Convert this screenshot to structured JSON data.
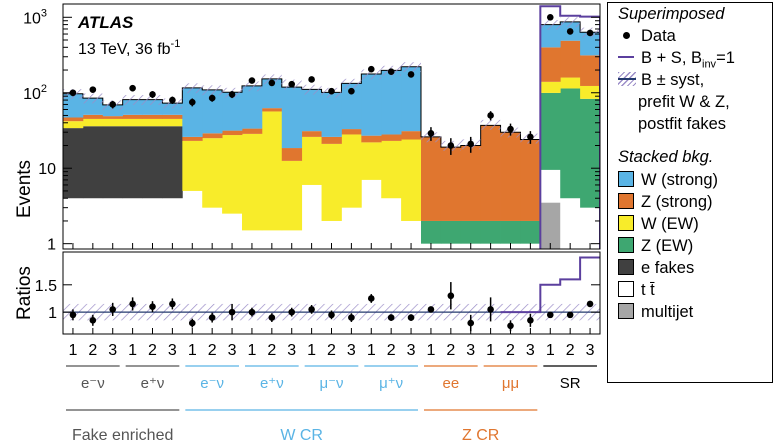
{
  "chart_data": {
    "type": "bar",
    "stacked": true,
    "categories": [
      "1",
      "2",
      "3",
      "1",
      "2",
      "3",
      "1",
      "2",
      "3",
      "1",
      "2",
      "3",
      "1",
      "2",
      "3",
      "1",
      "2",
      "3",
      "1",
      "2",
      "3",
      "1",
      "2",
      "3",
      "1",
      "2",
      "3"
    ],
    "regions": [
      {
        "label": "e⁻ν",
        "color": "#555555"
      },
      {
        "label": "e⁺ν",
        "color": "#555555"
      },
      {
        "label": "e⁻ν",
        "color": "#5ab4e5"
      },
      {
        "label": "e⁺ν",
        "color": "#5ab4e5"
      },
      {
        "label": "μ⁻ν",
        "color": "#5ab4e5"
      },
      {
        "label": "μ⁺ν",
        "color": "#5ab4e5"
      },
      {
        "label": "ee",
        "color": "#e0762f"
      },
      {
        "label": "μμ",
        "color": "#e0762f"
      },
      {
        "label": "SR",
        "color": "#000000"
      }
    ],
    "groups": [
      {
        "label": "Fake enriched",
        "color": "#555555"
      },
      {
        "label": "W CR",
        "color": "#5ab4e5"
      },
      {
        "label": "Z CR",
        "color": "#e0762f"
      }
    ],
    "annotation": {
      "experiment": "ATLAS",
      "energy": "13 TeV, 36 fb",
      "lumi_sup": "-1"
    },
    "ylabel": "Events",
    "ylabel_ratio": "Ratios",
    "yscale": "log",
    "ylim": [
      0.85,
      1500
    ],
    "yticks": [
      {
        "v": 1,
        "label": "1"
      },
      {
        "v": 10,
        "label": "10"
      },
      {
        "v": 100,
        "label": "10",
        "sup": "2"
      },
      {
        "v": 1000,
        "label": "10",
        "sup": "3"
      }
    ],
    "ratio_ylim": [
      0.6,
      2.1
    ],
    "ratio_yticks": [
      {
        "v": 1,
        "label": "1"
      },
      {
        "v": 1.5,
        "label": "1.5"
      }
    ],
    "series": [
      {
        "name": "multijet",
        "color": "#a6a6a6",
        "values": [
          0,
          0,
          0,
          0,
          0,
          0,
          0,
          0,
          0,
          0,
          0,
          0,
          0,
          0,
          0,
          0,
          0,
          0,
          0,
          0,
          0,
          0,
          0,
          0,
          3.5,
          0,
          0
        ]
      },
      {
        "name": "t t̄",
        "color": "#ffffff",
        "values": [
          4,
          4,
          4,
          4,
          4,
          4,
          5,
          3,
          2.5,
          1.5,
          1.5,
          1.5,
          6,
          2,
          3,
          7,
          4,
          2,
          1,
          1,
          1,
          1,
          1,
          1,
          6,
          4,
          3
        ]
      },
      {
        "name": "e fakes",
        "color": "#404040",
        "values": [
          30,
          32,
          32,
          32,
          32,
          32,
          0,
          0,
          0,
          0,
          0,
          0,
          0,
          0,
          0,
          0,
          0,
          0,
          0,
          0,
          0,
          0,
          0,
          0,
          0,
          0,
          0
        ]
      },
      {
        "name": "Z (EW)",
        "color": "#3ea771",
        "values": [
          0,
          0,
          0,
          0,
          0,
          0,
          0,
          0,
          0,
          0,
          0,
          0,
          0,
          0,
          0,
          0,
          0,
          0,
          1,
          1,
          1,
          1,
          1,
          1,
          90,
          110,
          80
        ]
      },
      {
        "name": "W (EW)",
        "color": "#f8ec2a",
        "values": [
          8,
          9,
          9,
          9,
          9,
          9,
          18,
          22,
          25,
          27,
          55,
          11,
          20,
          19,
          25,
          15,
          19,
          22,
          0,
          0,
          0,
          0,
          0,
          0,
          40,
          45,
          40
        ]
      },
      {
        "name": "Z (strong)",
        "color": "#e0762f",
        "values": [
          5,
          6,
          4,
          6,
          6,
          6,
          3,
          4,
          4,
          5,
          6,
          6,
          5,
          5,
          5,
          5,
          5,
          7,
          24,
          17,
          18,
          35,
          28,
          22,
          260,
          330,
          190
        ]
      },
      {
        "name": "W (strong)",
        "color": "#5ab4e5",
        "values": [
          50,
          34,
          20,
          30,
          30,
          22,
          90,
          80,
          70,
          90,
          90,
          100,
          80,
          75,
          100,
          150,
          170,
          190,
          0,
          0,
          0,
          0,
          0,
          0,
          400,
          380,
          320
        ]
      }
    ],
    "data": [
      100,
      110,
      70,
      115,
      95,
      80,
      75,
      85,
      95,
      145,
      135,
      130,
      150,
      105,
      105,
      205,
      190,
      175,
      29,
      20,
      21,
      50,
      33,
      26,
      1000,
      650,
      620
    ],
    "data_err": [
      10,
      10,
      8,
      11,
      10,
      9,
      9,
      9,
      10,
      12,
      12,
      11,
      12,
      10,
      10,
      14,
      14,
      13,
      6,
      5,
      5,
      7,
      6,
      5,
      35,
      28,
      28
    ],
    "bkg_total": [
      97,
      85,
      69,
      81,
      81,
      73,
      116,
      109,
      101,
      123,
      152,
      130,
      111,
      101,
      133,
      177,
      198,
      221,
      26,
      20,
      21,
      38,
      30,
      25,
      800,
      870,
      634
    ],
    "bsig_total": [
      null,
      null,
      null,
      null,
      null,
      null,
      null,
      null,
      null,
      null,
      null,
      null,
      null,
      null,
      null,
      null,
      null,
      null,
      null,
      null,
      null,
      null,
      null,
      null,
      1400,
      1050,
      1020
    ],
    "ratio": [
      0.95,
      0.85,
      1.05,
      1.15,
      1.1,
      1.15,
      0.8,
      0.9,
      1.0,
      1.0,
      0.9,
      1.0,
      1.05,
      0.95,
      0.9,
      1.25,
      0.9,
      0.9,
      1.05,
      1.3,
      0.8,
      1.05,
      0.75,
      0.85,
      0.95,
      0.95,
      1.15
    ],
    "ratio_err": [
      0.1,
      0.1,
      0.12,
      0.12,
      0.1,
      0.1,
      0.08,
      0.09,
      0.15,
      0.08,
      0.08,
      0.08,
      0.08,
      0.08,
      0.08,
      0.08,
      0.06,
      0.06,
      0.04,
      0.25,
      0.15,
      0.22,
      0.1,
      0.12,
      0.05,
      0.05,
      0.05
    ],
    "ratio_bsig": [
      null,
      null,
      null,
      null,
      null,
      null,
      null,
      null,
      null,
      null,
      null,
      null,
      null,
      null,
      null,
      null,
      null,
      null,
      null,
      null,
      null,
      null,
      1.0,
      1.0,
      1.5,
      1.6,
      2.0
    ],
    "syst_rel": 0.15
  },
  "legend": {
    "superimposed_title": "Superimposed",
    "data_label": "Data",
    "bs_label": "B + S, B",
    "bs_sub": "inv",
    "bs_tail": "=1",
    "bsyst_lines": [
      "B ± syst,",
      "prefit W & Z,",
      "postfit fakes"
    ],
    "stacked_title": "Stacked bkg."
  },
  "colors": {
    "purple": "#5b3f9e",
    "hatch": "#9b8dc8",
    "bkg_line": "#243a6e"
  }
}
